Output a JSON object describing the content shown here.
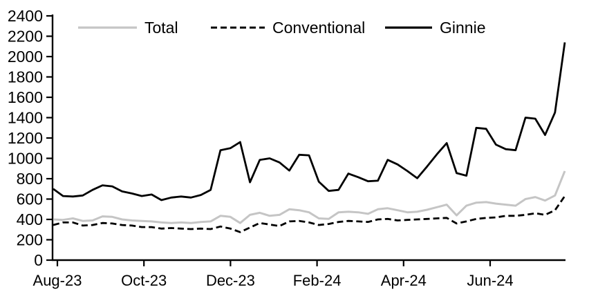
{
  "chart_data": {
    "type": "line",
    "title": "",
    "xlabel": "",
    "ylabel": "",
    "grid": false,
    "legend_position": "top",
    "ylim": [
      0,
      2400
    ],
    "y_ticks": [
      0,
      200,
      400,
      600,
      800,
      1000,
      1200,
      1400,
      1600,
      1800,
      2000,
      2200,
      2400
    ],
    "x_tick_labels": [
      "Aug-23",
      "Oct-23",
      "Dec-23",
      "Feb-24",
      "Apr-24",
      "Jun-24"
    ],
    "x_note": "weekly points from Aug-23 through the last observation",
    "colors": {
      "total": "#c5c5c5",
      "conventional": "#000000",
      "ginnie": "#000000",
      "axis": "#000000"
    },
    "series": [
      {
        "name": "Total",
        "style": "solid",
        "color": "#c5c5c5",
        "values": [
          400,
          395,
          410,
          385,
          390,
          430,
          425,
          400,
          390,
          385,
          380,
          370,
          365,
          370,
          365,
          375,
          380,
          435,
          425,
          365,
          445,
          465,
          435,
          445,
          500,
          490,
          470,
          410,
          405,
          470,
          475,
          470,
          455,
          500,
          510,
          490,
          470,
          475,
          495,
          520,
          545,
          440,
          535,
          565,
          570,
          555,
          545,
          535,
          600,
          620,
          585,
          635,
          875
        ]
      },
      {
        "name": "Conventional",
        "style": "dashed",
        "color": "#000000",
        "values": [
          345,
          370,
          370,
          340,
          345,
          365,
          360,
          345,
          340,
          325,
          325,
          310,
          315,
          310,
          305,
          310,
          305,
          330,
          310,
          275,
          320,
          365,
          350,
          335,
          380,
          385,
          370,
          345,
          355,
          375,
          385,
          380,
          375,
          400,
          405,
          390,
          395,
          400,
          405,
          410,
          415,
          360,
          380,
          405,
          415,
          420,
          435,
          435,
          445,
          460,
          445,
          490,
          630
        ]
      },
      {
        "name": "Ginnie",
        "style": "solid",
        "color": "#000000",
        "values": [
          700,
          630,
          625,
          635,
          690,
          735,
          725,
          675,
          655,
          630,
          645,
          590,
          615,
          625,
          615,
          640,
          690,
          1080,
          1100,
          1160,
          765,
          985,
          1000,
          960,
          880,
          1035,
          1030,
          770,
          680,
          690,
          850,
          815,
          775,
          780,
          985,
          940,
          875,
          805,
          920,
          1040,
          1150,
          855,
          830,
          1300,
          1290,
          1135,
          1090,
          1080,
          1400,
          1390,
          1230,
          1450,
          2140
        ]
      }
    ],
    "legend": {
      "items": [
        {
          "label": "Total"
        },
        {
          "label": "Conventional"
        },
        {
          "label": "Ginnie"
        }
      ]
    }
  }
}
